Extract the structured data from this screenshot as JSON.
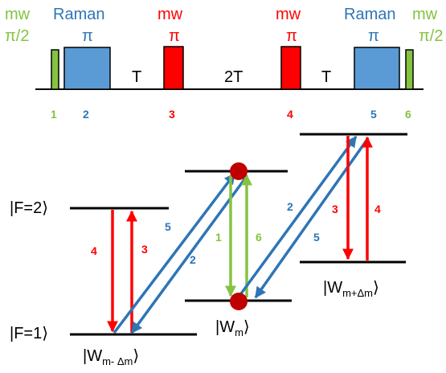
{
  "colors": {
    "mw_green": "#84c341",
    "raman_blue": "#2e75b6",
    "raman_fill": "#5b9bd5",
    "mw_red": "#ff0000",
    "level": "#000000",
    "atom": "#c00000"
  },
  "sequence": {
    "header": {
      "mw1": "mw",
      "raman1": "Raman",
      "mw2": "mw",
      "mw3": "mw",
      "raman2": "Raman",
      "mw4": "mw"
    },
    "subheader": {
      "p1": "π/2",
      "p2": "π",
      "p3": "π",
      "p4": "π",
      "p5": "π",
      "p6": "π/2"
    },
    "intervals": {
      "t1": "T",
      "t2": "2T",
      "t3": "T"
    },
    "pulse_numbers": [
      "1",
      "2",
      "3",
      "4",
      "5",
      "6"
    ]
  },
  "levels": {
    "f2": {
      "bra": "|F=2",
      "ket": "⟩"
    },
    "f1": {
      "bra": "|F=1",
      "ket": "⟩"
    },
    "w_minus": {
      "bra": "|W",
      "sub": "m- Δm",
      "ket": "⟩"
    },
    "w_center": {
      "bra": "|W",
      "sub": "m",
      "ket": "⟩"
    },
    "w_plus": {
      "bra": "|W",
      "sub": "m+Δm",
      "ket": "⟩"
    }
  },
  "transition_labels": {
    "left_red_down": "4",
    "left_red_up": "3",
    "left_blue_upper": "5",
    "left_blue_lower": "2",
    "center_green_left": "1",
    "center_green_right": "6",
    "right_blue_upper": "2",
    "right_blue_lower": "5",
    "right_red_down": "3",
    "right_red_up": "4"
  }
}
